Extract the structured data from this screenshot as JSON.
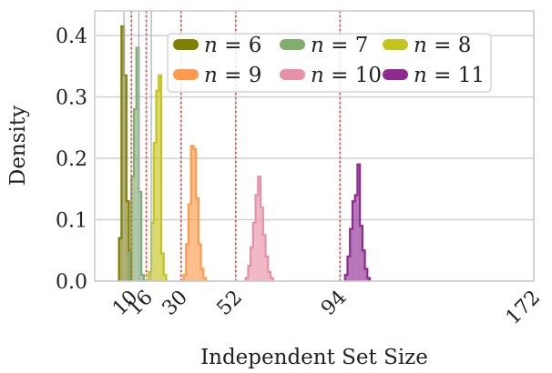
{
  "chart_data": {
    "type": "histogram",
    "xlabel": "Independent Set Size",
    "ylabel": "Density",
    "x_ticks": [
      10,
      16,
      30,
      52,
      94,
      172
    ],
    "y_ticks": [
      0.0,
      0.1,
      0.2,
      0.3,
      0.4
    ],
    "y_tick_labels": [
      "0.0",
      "0.1",
      "0.2",
      "0.3",
      "0.4"
    ],
    "xlim": [
      0,
      172
    ],
    "ylim": [
      0,
      0.44
    ],
    "grid": true,
    "legend_placement": "top",
    "legend_ncol": 3,
    "reference_lines": [
      {
        "x": 7,
        "style": "solid",
        "color": "#b0b0c8"
      },
      {
        "x": 10,
        "style": "dotted",
        "color": "#e05050"
      },
      {
        "x": 13,
        "style": "solid",
        "color": "#b0b0c8"
      },
      {
        "x": 16,
        "style": "dotted",
        "color": "#e05050"
      },
      {
        "x": 18,
        "style": "solid",
        "color": "#b0b0c8"
      },
      {
        "x": 30,
        "style": "dotted",
        "color": "#e05050"
      },
      {
        "x": 52,
        "style": "dotted",
        "color": "#e05050"
      },
      {
        "x": 94,
        "style": "dotted",
        "color": "#e05050"
      }
    ],
    "series": [
      {
        "name": "n = 6",
        "label_var": "n",
        "label_val": "6",
        "color": "#808000",
        "bins": [
          [
            5,
            6,
            0.07
          ],
          [
            6,
            7,
            0.415
          ],
          [
            7,
            8,
            0.335
          ],
          [
            8,
            9,
            0.13
          ],
          [
            9,
            10,
            0.05
          ]
        ]
      },
      {
        "name": "n = 7",
        "label_var": "n",
        "label_val": "7",
        "color": "#7fae6e",
        "bins": [
          [
            9,
            10,
            0.045
          ],
          [
            10,
            11,
            0.17
          ],
          [
            11,
            12,
            0.28
          ],
          [
            12,
            13,
            0.38
          ],
          [
            13,
            14,
            0.145
          ],
          [
            14,
            15,
            0.01
          ]
        ]
      },
      {
        "name": "n = 8",
        "label_var": "n",
        "label_val": "8",
        "color": "#c4c41e",
        "bins": [
          [
            17,
            18,
            0.015
          ],
          [
            18,
            19,
            0.095
          ],
          [
            19,
            20,
            0.225
          ],
          [
            20,
            21,
            0.31
          ],
          [
            21,
            22,
            0.335
          ],
          [
            22,
            23,
            0.045
          ],
          [
            23,
            24,
            0.01
          ]
        ]
      },
      {
        "name": "n = 9",
        "label_var": "n",
        "label_val": "9",
        "color": "#ff9a4d",
        "bins": [
          [
            31,
            32,
            0.01
          ],
          [
            32,
            33,
            0.06
          ],
          [
            33,
            34,
            0.125
          ],
          [
            34,
            35,
            0.22
          ],
          [
            35,
            36,
            0.215
          ],
          [
            36,
            37,
            0.135
          ],
          [
            37,
            38,
            0.06
          ],
          [
            38,
            39,
            0.02
          ],
          [
            39,
            40,
            0.005
          ]
        ]
      },
      {
        "name": "n = 10",
        "label_var": "n",
        "label_val": "10",
        "color": "#e890a8",
        "bins": [
          [
            56,
            57,
            0.005
          ],
          [
            57,
            58,
            0.025
          ],
          [
            58,
            59,
            0.055
          ],
          [
            59,
            60,
            0.095
          ],
          [
            60,
            61,
            0.14
          ],
          [
            61,
            62,
            0.17
          ],
          [
            62,
            63,
            0.12
          ],
          [
            63,
            64,
            0.075
          ],
          [
            64,
            65,
            0.04
          ],
          [
            65,
            66,
            0.015
          ],
          [
            66,
            67,
            0.005
          ]
        ]
      },
      {
        "name": "n = 11",
        "label_var": "n",
        "label_val": "11",
        "color": "#8e2a90",
        "bins": [
          [
            96,
            97,
            0.01
          ],
          [
            97,
            98,
            0.04
          ],
          [
            98,
            99,
            0.085
          ],
          [
            99,
            100,
            0.13
          ],
          [
            100,
            101,
            0.14
          ],
          [
            101,
            102,
            0.19
          ],
          [
            102,
            103,
            0.09
          ],
          [
            103,
            104,
            0.05
          ],
          [
            104,
            105,
            0.02
          ],
          [
            105,
            106,
            0.005
          ]
        ]
      }
    ]
  }
}
